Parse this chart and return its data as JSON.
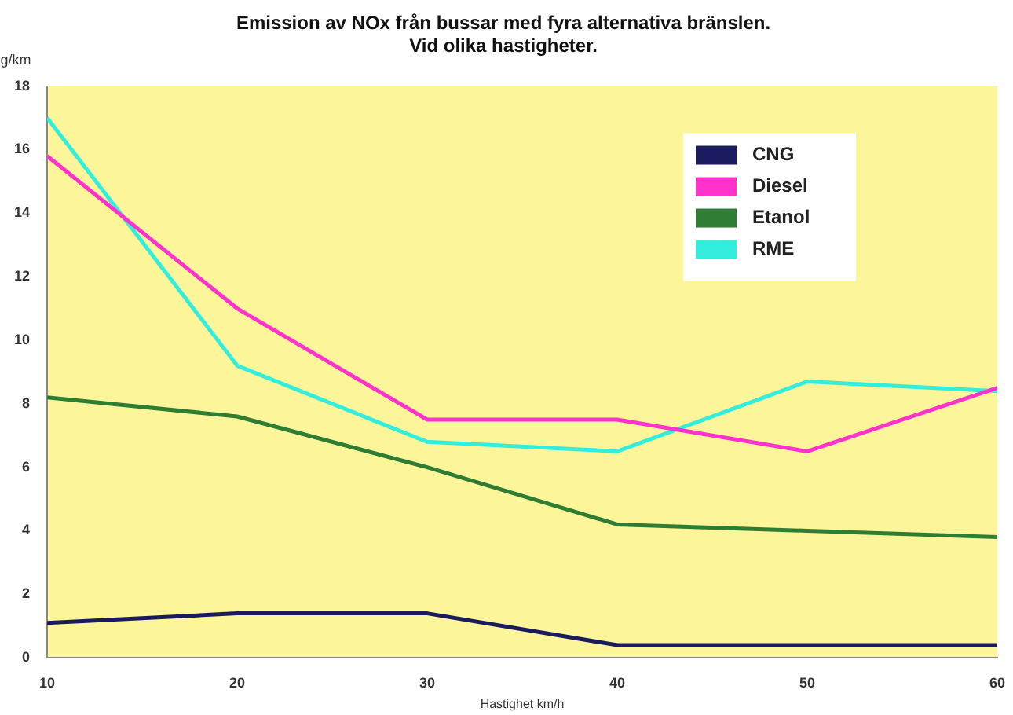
{
  "chart_data": {
    "type": "line",
    "title": [
      "Emission av NOx från bussar med fyra alternativa bränslen.",
      "Vid olika hastigheter."
    ],
    "xlabel": "Hastighet km/h",
    "ylabel": "g/km",
    "x": [
      10,
      20,
      30,
      40,
      50,
      60
    ],
    "xlim": [
      10,
      60
    ],
    "xticks": [
      10,
      20,
      30,
      40,
      50,
      60
    ],
    "ylim": [
      0,
      18
    ],
    "yticks": [
      0,
      2,
      4,
      6,
      8,
      10,
      12,
      14,
      16,
      18
    ],
    "series": [
      {
        "name": "CNG",
        "color": "#1a1a5e",
        "values": [
          1.1,
          1.4,
          1.4,
          0.4,
          0.4,
          0.4
        ]
      },
      {
        "name": "Diesel",
        "color": "#ff33cc",
        "values": [
          15.8,
          11,
          7.5,
          7.5,
          6.5,
          8.5
        ]
      },
      {
        "name": "Etanol",
        "color": "#2e7d32",
        "values": [
          8.2,
          7.6,
          6.0,
          4.2,
          4.0,
          3.8
        ]
      },
      {
        "name": "RME",
        "color": "#33eedd",
        "values": [
          17,
          9.2,
          6.8,
          6.5,
          8.7,
          8.4
        ]
      }
    ],
    "grid": false,
    "legend": "top right",
    "marker": "none"
  }
}
